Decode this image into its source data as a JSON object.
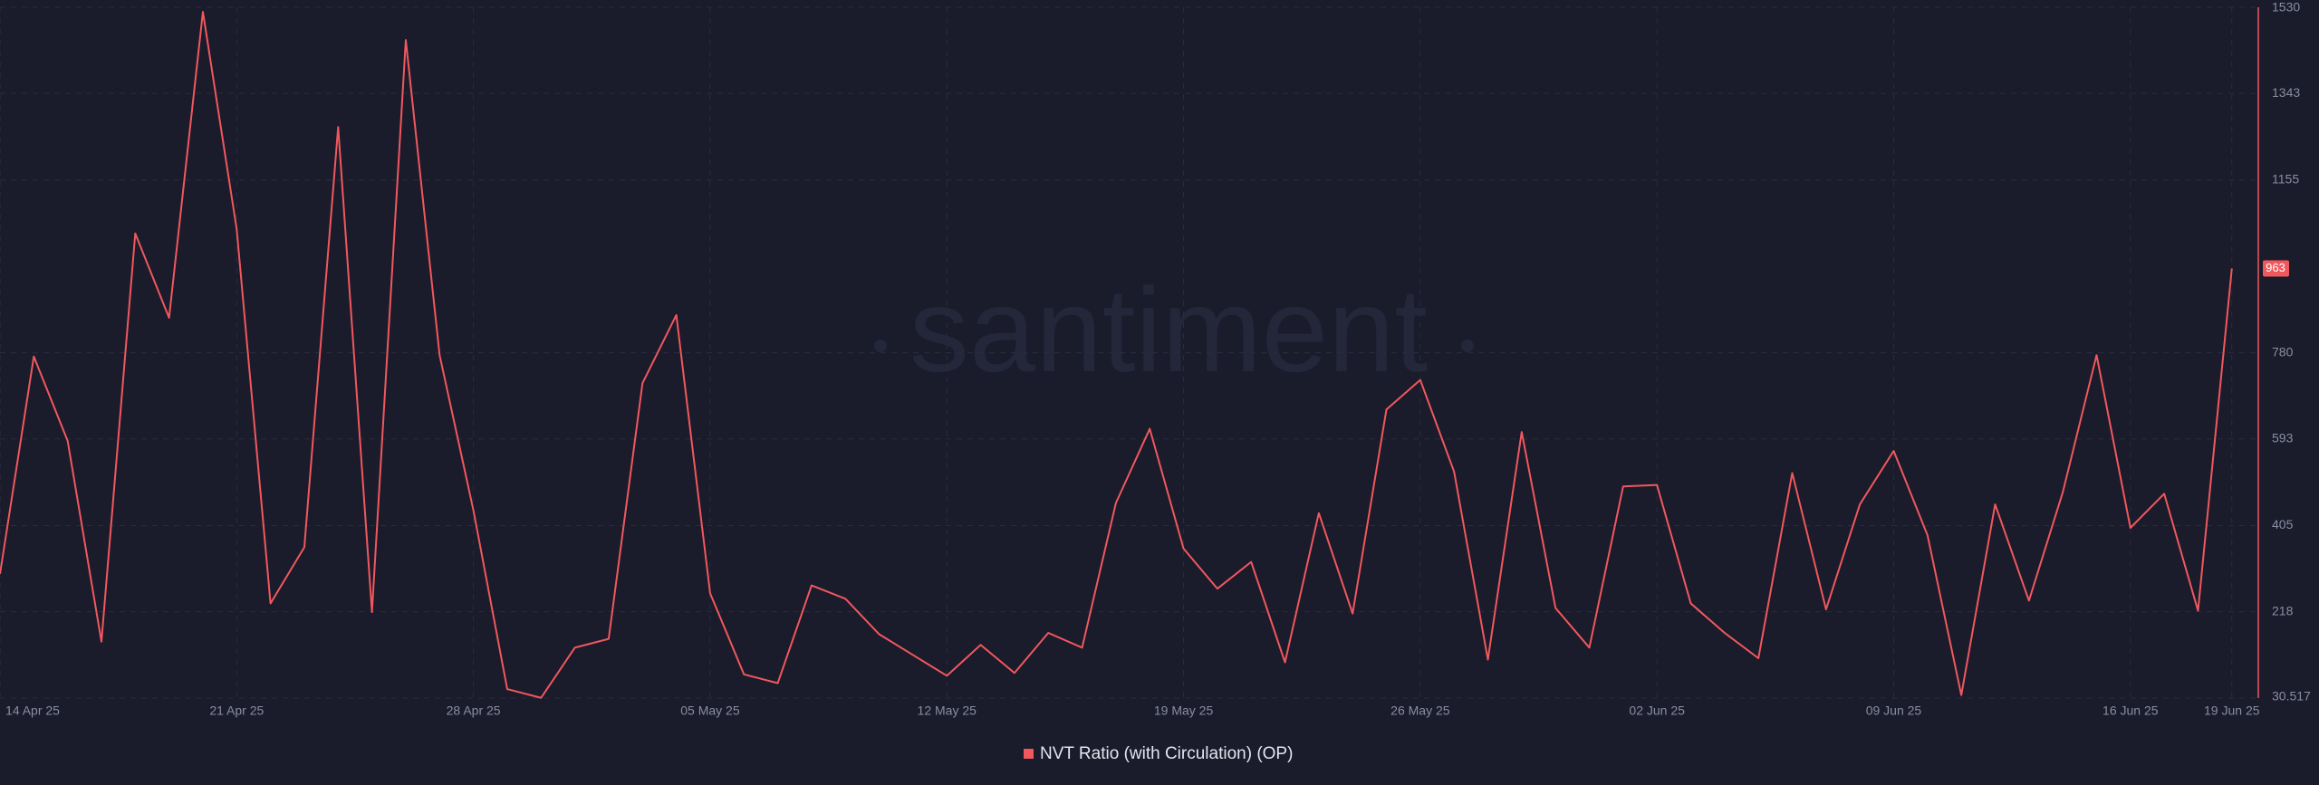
{
  "chart_data": {
    "type": "line",
    "watermark": "santiment",
    "categories": [
      "14 Apr 25",
      null,
      null,
      null,
      null,
      null,
      null,
      "21 Apr 25",
      null,
      null,
      null,
      null,
      null,
      null,
      "28 Apr 25",
      null,
      null,
      null,
      null,
      null,
      null,
      "05 May 25",
      null,
      null,
      null,
      null,
      null,
      null,
      "12 May 25",
      null,
      null,
      null,
      null,
      null,
      null,
      "19 May 25",
      null,
      null,
      null,
      null,
      null,
      null,
      "26 May 25",
      null,
      null,
      null,
      null,
      null,
      null,
      "02 Jun 25",
      null,
      null,
      null,
      null,
      null,
      null,
      "09 Jun 25",
      null,
      null,
      null,
      null,
      null,
      null,
      "16 Jun 25",
      null,
      null,
      "19 Jun 25"
    ],
    "series": [
      {
        "name": "NVT Ratio (with Circulation) (OP)",
        "color": "#f0585e",
        "values": [
          300,
          772,
          589,
          153,
          1039,
          856,
          1520,
          1048,
          236,
          358,
          1270,
          217,
          1459,
          775,
          438,
          50,
          31,
          140,
          159,
          714,
          862,
          258,
          82,
          63,
          275,
          246,
          169,
          124,
          79,
          146,
          85,
          172,
          140,
          454,
          615,
          355,
          268,
          326,
          108,
          432,
          214,
          657,
          721,
          522,
          114,
          608,
          226,
          140,
          490,
          493,
          236,
          172,
          117,
          519,
          223,
          451,
          567,
          384,
          37,
          451,
          242,
          477,
          775,
          400,
          474,
          220,
          963
        ]
      }
    ],
    "ylim": [
      30.517,
      1530
    ],
    "yticks": [
      30.517,
      218,
      405,
      593,
      780,
      1155,
      1343,
      1530
    ],
    "grid": true
  }
}
